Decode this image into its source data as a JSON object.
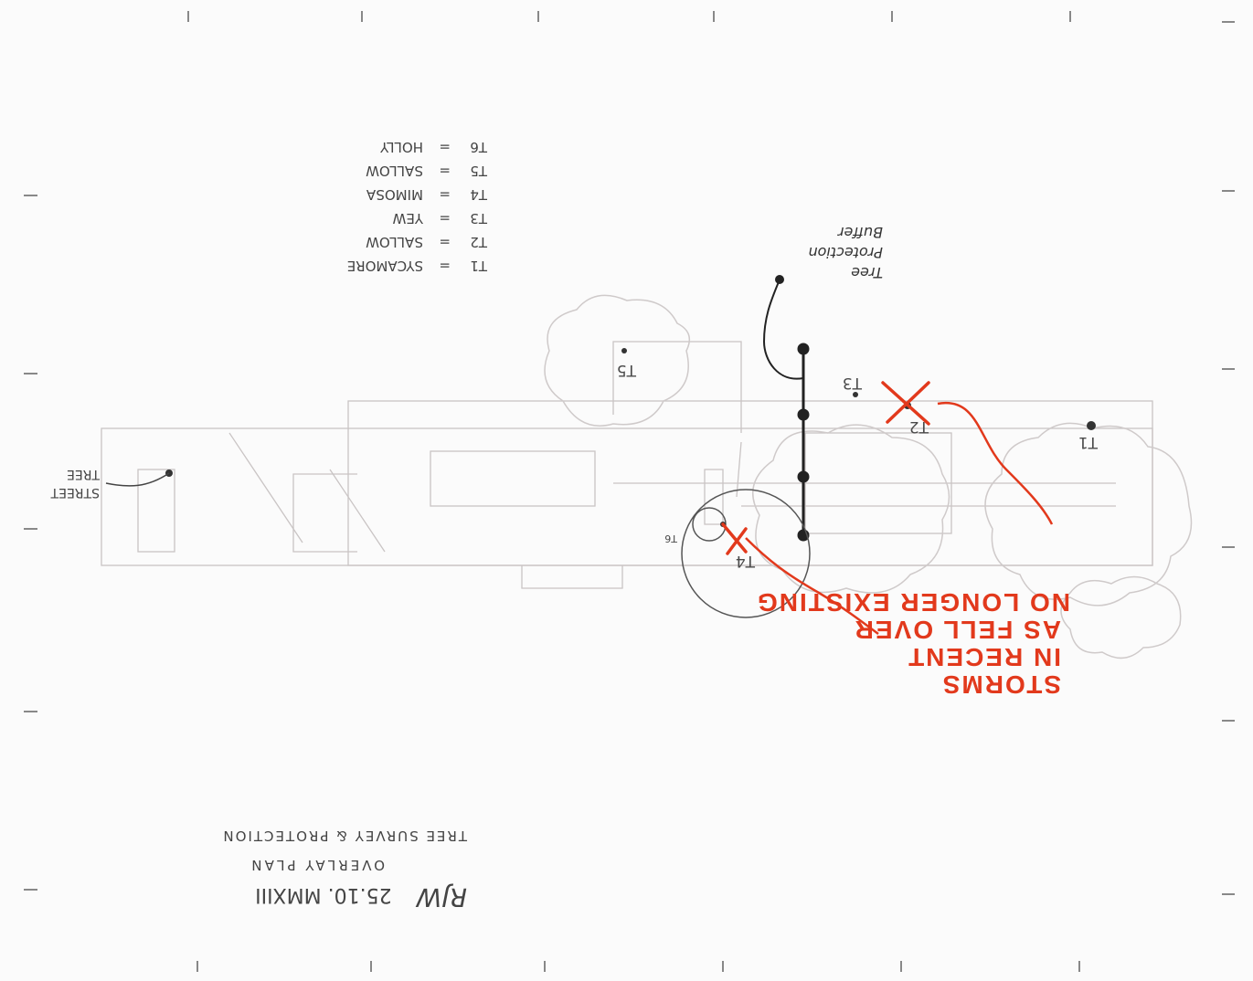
{
  "title_block": {
    "line1": "TREE SURVEY & PROTECTION",
    "line2": "OVERLAY PLAN",
    "signature": "RJW",
    "date": "25.10. MMXIII"
  },
  "legend": [
    {
      "code": "T1",
      "eq": "=",
      "species": "SYCAMORE"
    },
    {
      "code": "T2",
      "eq": "=",
      "species": "SALLOW"
    },
    {
      "code": "T3",
      "eq": "=",
      "species": "YEW"
    },
    {
      "code": "T4",
      "eq": "=",
      "species": "MIMOSA"
    },
    {
      "code": "T5",
      "eq": "=",
      "species": "SALLOW"
    },
    {
      "code": "T6",
      "eq": "=",
      "species": "HOLLY"
    }
  ],
  "annotations": {
    "buffer": [
      "Tree",
      "Protection",
      "Buffer"
    ],
    "street_tree": [
      "STREET",
      "TREE"
    ],
    "red_note": [
      "NO LONGER EXISTING",
      "AS FELL OVER",
      "IN RECENT",
      "STORMS"
    ]
  },
  "tree_labels": {
    "t1": "T1",
    "t2": "T2",
    "t3": "T3",
    "t4": "T4",
    "t5": "T5",
    "t6": "T6"
  },
  "colors": {
    "pencil": "#555555",
    "red_ink": "#e2391c",
    "paper": "#fbfbfb"
  }
}
